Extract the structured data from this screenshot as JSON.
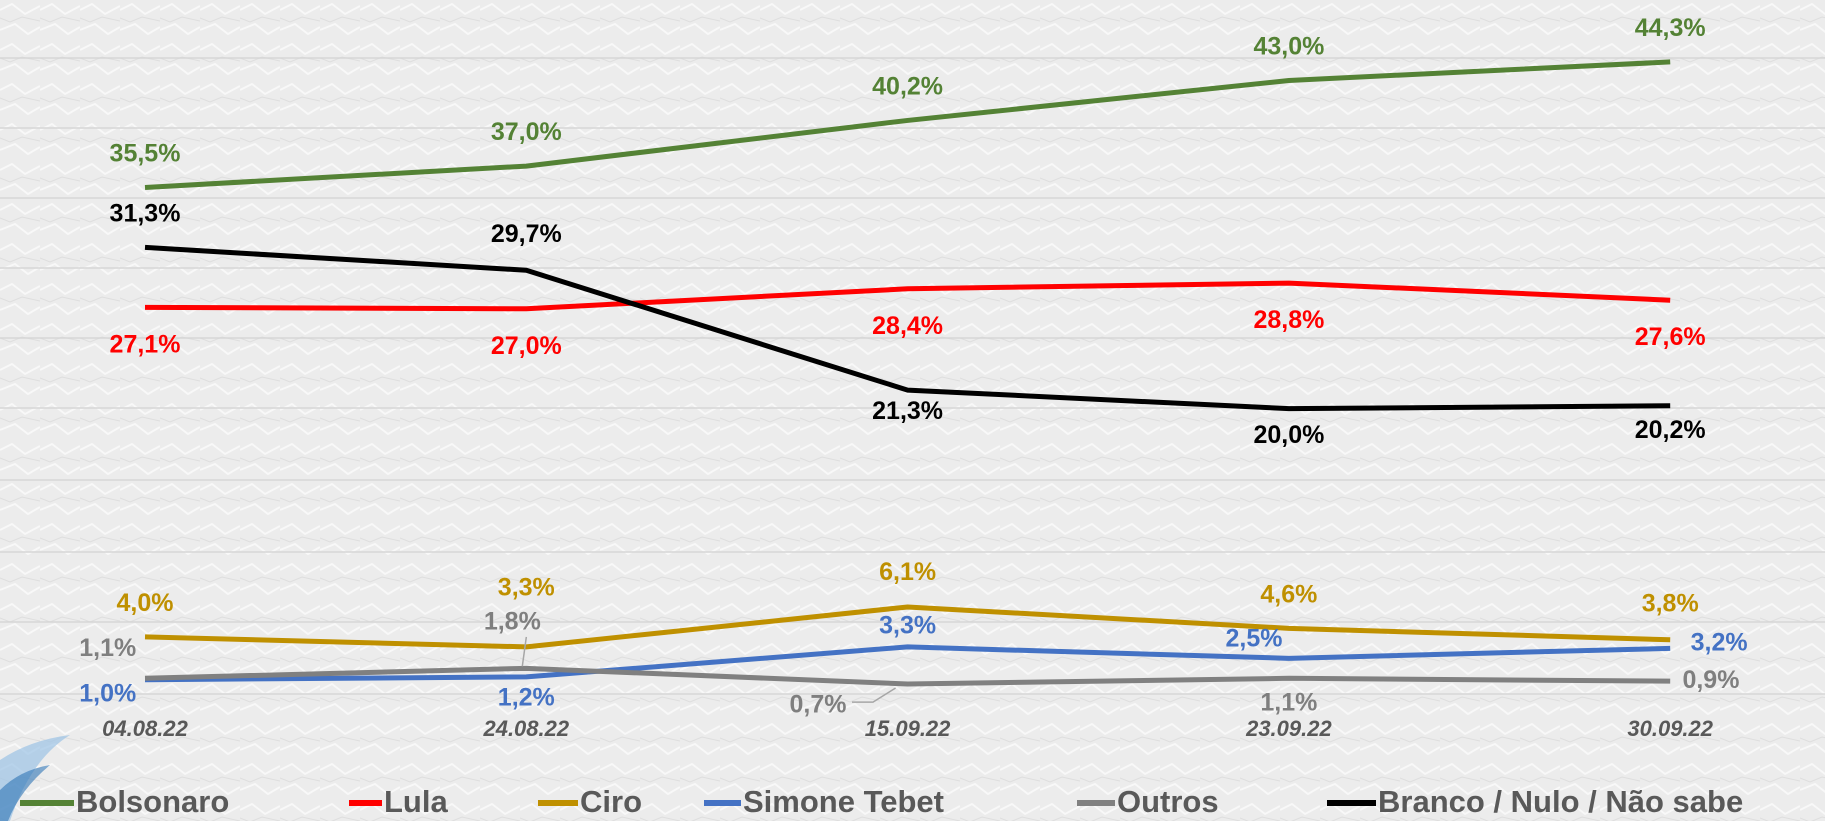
{
  "chart_data": {
    "type": "line",
    "categories": [
      "04.08.22",
      "24.08.22",
      "15.09.22",
      "23.09.22",
      "30.09.22"
    ],
    "ylim": [
      0,
      48.5
    ],
    "series": [
      {
        "name": "Bolsonaro",
        "color": "#548235",
        "values": [
          35.5,
          37.0,
          40.2,
          43.0,
          44.3
        ],
        "value_labels": [
          "35,5%",
          "37,0%",
          "40,2%",
          "43,0%",
          "44,3%"
        ]
      },
      {
        "name": "Lula",
        "color": "#ff0000",
        "values": [
          27.1,
          27.0,
          28.4,
          28.8,
          27.6
        ],
        "value_labels": [
          "27,1%",
          "27,0%",
          "28,4%",
          "28,8%",
          "27,6%"
        ]
      },
      {
        "name": "Ciro",
        "color": "#bf9000",
        "values": [
          4.0,
          3.3,
          6.1,
          4.6,
          3.8
        ],
        "value_labels": [
          "4,0%",
          "3,3%",
          "6,1%",
          "4,6%",
          "3,8%"
        ]
      },
      {
        "name": "Simone Tebet",
        "color": "#4472c4",
        "values": [
          1.0,
          1.2,
          3.3,
          2.5,
          3.2
        ],
        "value_labels": [
          "1,0%",
          "1,2%",
          "3,3%",
          "2,5%",
          "3,2%"
        ]
      },
      {
        "name": "Outros",
        "color": "#808080",
        "values": [
          1.1,
          1.8,
          0.7,
          1.1,
          0.9
        ],
        "value_labels": [
          "1,1%",
          "1,8%",
          "0,7%",
          "1,1%",
          "0,9%"
        ]
      },
      {
        "name": "Branco / Nulo / Não sabe",
        "color": "#000000",
        "values": [
          31.3,
          29.7,
          21.3,
          20.0,
          20.2
        ],
        "value_labels": [
          "31,3%",
          "29,7%",
          "21,3%",
          "20,0%",
          "20,2%"
        ]
      }
    ]
  }
}
